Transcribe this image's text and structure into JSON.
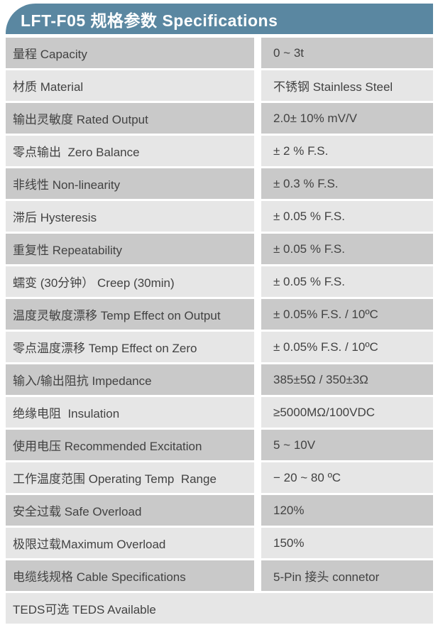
{
  "header": {
    "title": "LFT-F05 规格参数 Specifications"
  },
  "colors": {
    "header_bg": "#5a87a1",
    "header_text": "#ffffff",
    "row_dark": "#c9c9c9",
    "row_light": "#e6e6e6",
    "text": "#424242"
  },
  "table": {
    "rows": [
      {
        "label": "量程 Capacity",
        "value": "0 ~ 3t",
        "shade": "dark",
        "full_width": false
      },
      {
        "label": "材质 Material",
        "value": "不锈钢 Stainless Steel",
        "shade": "light",
        "full_width": false
      },
      {
        "label": "输出灵敏度 Rated Output",
        "value": "2.0± 10% mV/V",
        "shade": "dark",
        "full_width": false
      },
      {
        "label": "零点输出  Zero Balance",
        "value": "± 2 % F.S.",
        "shade": "light",
        "full_width": false
      },
      {
        "label": "非线性 Non-linearity",
        "value": "± 0.3 % F.S.",
        "shade": "dark",
        "full_width": false
      },
      {
        "label": "滞后 Hysteresis",
        "value": "± 0.05 % F.S.",
        "shade": "light",
        "full_width": false
      },
      {
        "label": "重复性 Repeatability",
        "value": "± 0.05 % F.S.",
        "shade": "dark",
        "full_width": false
      },
      {
        "label": "蠕变 (30分钟） Creep (30min)",
        "value": "± 0.05 % F.S.",
        "shade": "light",
        "full_width": false
      },
      {
        "label": "温度灵敏度漂移 Temp Effect on Output",
        "value": "± 0.05% F.S. / 10ºC",
        "shade": "dark",
        "full_width": false
      },
      {
        "label": "零点温度漂移 Temp Effect on Zero",
        "value": "± 0.05% F.S. / 10ºC",
        "shade": "light",
        "full_width": false
      },
      {
        "label": "输入/输出阻抗 Impedance",
        "value": "385±5Ω / 350±3Ω",
        "shade": "dark",
        "full_width": false
      },
      {
        "label": "绝缘电阻  Insulation",
        "value": "≥5000MΩ/100VDC",
        "shade": "light",
        "full_width": false
      },
      {
        "label": "使用电压 Recommended Excitation",
        "value": "5 ~ 10V",
        "shade": "dark",
        "full_width": false
      },
      {
        "label": "工作温度范围 Operating Temp  Range",
        "value": "− 20 ~ 80 ºC",
        "shade": "light",
        "full_width": false
      },
      {
        "label": "安全过载 Safe Overload",
        "value": "120%",
        "shade": "dark",
        "full_width": false
      },
      {
        "label": "极限过载Maximum Overload",
        "value": "150%",
        "shade": "light",
        "full_width": false
      },
      {
        "label": "电缆线规格 Cable Specifications",
        "value": "5-Pin 接头 connetor",
        "shade": "dark",
        "full_width": false
      },
      {
        "label": "TEDS可选 TEDS Available",
        "value": "",
        "shade": "light",
        "full_width": true
      }
    ]
  }
}
